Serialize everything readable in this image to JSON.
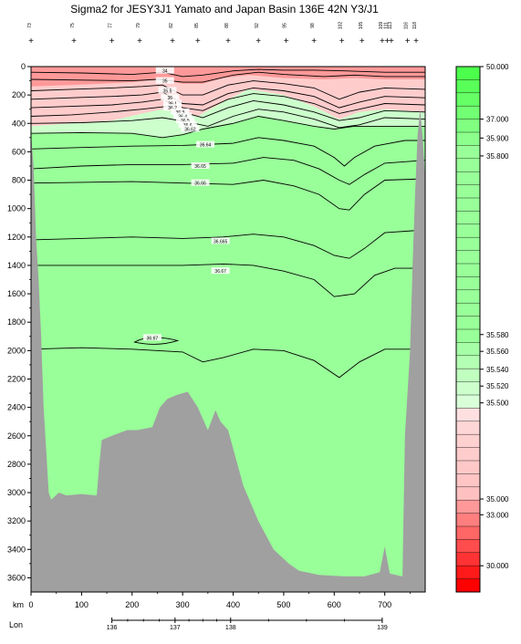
{
  "chart_data": {
    "type": "contour",
    "title": "Sigma2 for JESY3J1 Yamato and Japan Basin 136E 42N Y3/J1",
    "x_axis": {
      "label": "km",
      "range": [
        0,
        780
      ],
      "ticks": [
        0,
        100,
        200,
        300,
        400,
        500,
        600,
        700
      ]
    },
    "y_axis": {
      "label": "",
      "range": [
        0,
        3700
      ],
      "reversed": true,
      "ticks": [
        0,
        200,
        400,
        600,
        800,
        1000,
        1200,
        1400,
        1600,
        1800,
        2000,
        2200,
        2400,
        2600,
        2800,
        3000,
        3200,
        3400,
        3600
      ]
    },
    "lon_axis": {
      "label": "Lon",
      "ticks": [
        {
          "km": 160,
          "label": "136"
        },
        {
          "km": 285,
          "label": "137"
        },
        {
          "km": 395,
          "label": "138"
        },
        {
          "km": 695,
          "label": "139"
        }
      ]
    },
    "stations": [
      {
        "km": 0,
        "label": "73"
      },
      {
        "km": 85,
        "label": "75"
      },
      {
        "km": 160,
        "label": "77"
      },
      {
        "km": 215,
        "label": "79"
      },
      {
        "km": 280,
        "label": "82"
      },
      {
        "km": 330,
        "label": "85"
      },
      {
        "km": 390,
        "label": "88"
      },
      {
        "km": 450,
        "label": "92"
      },
      {
        "km": 505,
        "label": "95"
      },
      {
        "km": 560,
        "label": "98"
      },
      {
        "km": 615,
        "label": "102"
      },
      {
        "km": 655,
        "label": "105"
      },
      {
        "km": 695,
        "label": "109"
      },
      {
        "km": 705,
        "label": "111"
      },
      {
        "km": 713,
        "label": "113"
      },
      {
        "km": 745,
        "label": "116"
      },
      {
        "km": 762,
        "label": "118"
      }
    ],
    "colorbar": {
      "labels": [
        {
          "value": "50.000",
          "pos": 0.0
        },
        {
          "value": "37.000",
          "pos": 0.1
        },
        {
          "value": "35.900",
          "pos": 0.136
        },
        {
          "value": "35.800",
          "pos": 0.17
        },
        {
          "value": "35.580",
          "pos": 0.51
        },
        {
          "value": "35.560",
          "pos": 0.542
        },
        {
          "value": "35.540",
          "pos": 0.576
        },
        {
          "value": "35.520",
          "pos": 0.608
        },
        {
          "value": "35.500",
          "pos": 0.64
        },
        {
          "value": "35.000",
          "pos": 0.823
        },
        {
          "value": "33.000",
          "pos": 0.853
        },
        {
          "value": "30.000",
          "pos": 0.95
        }
      ],
      "colors_top_to_bottom": [
        "#4dff4d",
        "#59ff59",
        "#66ff66",
        "#73ff73",
        "#80ff80",
        "#8cff8c",
        "#99ff99",
        "#99ff99",
        "#99ff99",
        "#99ff99",
        "#99ff99",
        "#99ff99",
        "#99ff99",
        "#99ff99",
        "#99ff99",
        "#99ff99",
        "#99ff99",
        "#99ff99",
        "#99ff99",
        "#99ff99",
        "#99ff99",
        "#a6ffa6",
        "#b3ffb3",
        "#c0ffc0",
        "#ccffcc",
        "#d9ffd9",
        "#ffe0e0",
        "#ffd6d6",
        "#ffd0d0",
        "#ffcccc",
        "#ffc8c8",
        "#ffc4c4",
        "#ffc0c0",
        "#ff9999",
        "#ff7f7f",
        "#ff6666",
        "#ff4c4c",
        "#ff3333",
        "#ff1a1a",
        "#ff0000"
      ]
    },
    "contour_labels": [
      "34",
      "35",
      "35.5",
      "36",
      "36.1",
      "36.2",
      "36.3",
      "36.4",
      "36.5",
      "36.6",
      "36.62",
      "36.64",
      "36.65",
      "36.66",
      "36.665",
      "36.67",
      "36.67"
    ],
    "fill_colors": {
      "deep": "#99ff99",
      "surface": "#ff9999",
      "pycnocline": "#ffcccc",
      "transition": "#ccffcc",
      "bathymetry": "#a0a0a0"
    }
  }
}
